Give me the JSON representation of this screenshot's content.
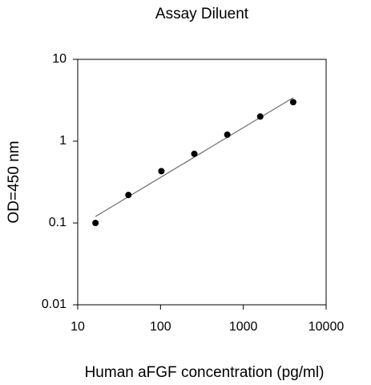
{
  "chart_data": {
    "type": "scatter",
    "title": "Assay Diluent",
    "x_label": "Human aFGF concentration (pg/ml)",
    "y_label": "OD=450 nm",
    "x": [
      16.384,
      40.96,
      102.4,
      256,
      640,
      1600,
      4000
    ],
    "values": [
      0.1,
      0.22,
      0.43,
      0.7,
      1.2,
      2.0,
      3.0
    ],
    "color": "#000000",
    "fit": {
      "x": [
        16.384,
        4000
      ],
      "values": [
        0.12,
        3.4
      ],
      "color": "#555555"
    },
    "xscale": "log",
    "yscale": "log",
    "xlim": [
      10,
      10000
    ],
    "ylim": [
      0.01,
      10
    ],
    "xticks": [
      10,
      100,
      1000,
      10000
    ],
    "yticks": [
      0.01,
      0.1,
      1,
      10
    ]
  }
}
